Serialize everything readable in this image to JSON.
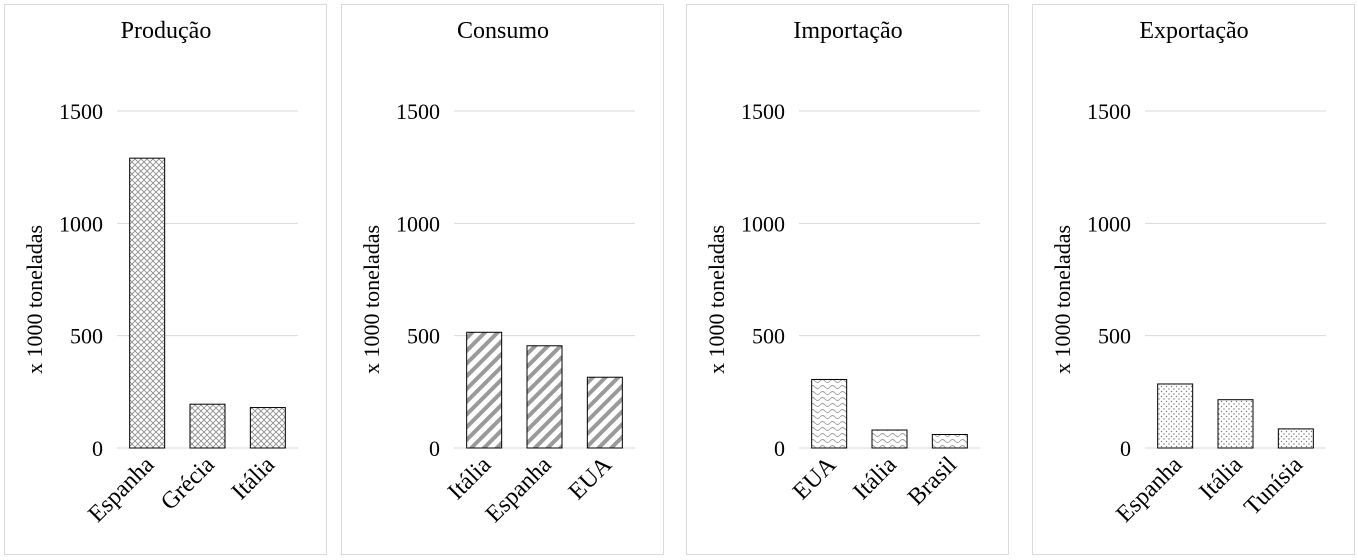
{
  "chart_data": [
    {
      "type": "bar",
      "title": "Produção",
      "ylabel": "x 1000 toneladas",
      "ylim": [
        0,
        1500
      ],
      "yticks": [
        0,
        500,
        1000,
        1500
      ],
      "categories": [
        "Espanha",
        "Grécia",
        "Itália"
      ],
      "values": [
        1290,
        195,
        180
      ],
      "pattern": "crosshatch",
      "grid": true
    },
    {
      "type": "bar",
      "title": "Consumo",
      "ylabel": "x 1000 toneladas",
      "ylim": [
        0,
        1500
      ],
      "yticks": [
        0,
        500,
        1000,
        1500
      ],
      "categories": [
        "Itália",
        "Espanha",
        "EUA"
      ],
      "values": [
        515,
        455,
        315
      ],
      "pattern": "diagonal-stripes",
      "grid": true
    },
    {
      "type": "bar",
      "title": "Importação",
      "ylabel": "x 1000 toneladas",
      "ylim": [
        0,
        1500
      ],
      "yticks": [
        0,
        500,
        1000,
        1500
      ],
      "categories": [
        "EUA",
        "Itália",
        "Brasil"
      ],
      "values": [
        305,
        80,
        60
      ],
      "pattern": "waves",
      "grid": true
    },
    {
      "type": "bar",
      "title": "Exportação",
      "ylabel": "x 1000 toneladas",
      "ylim": [
        0,
        1500
      ],
      "yticks": [
        0,
        500,
        1000,
        1500
      ],
      "categories": [
        "Espanha",
        "Itália",
        "Tunísia"
      ],
      "values": [
        285,
        215,
        85
      ],
      "pattern": "dots",
      "grid": true
    }
  ]
}
